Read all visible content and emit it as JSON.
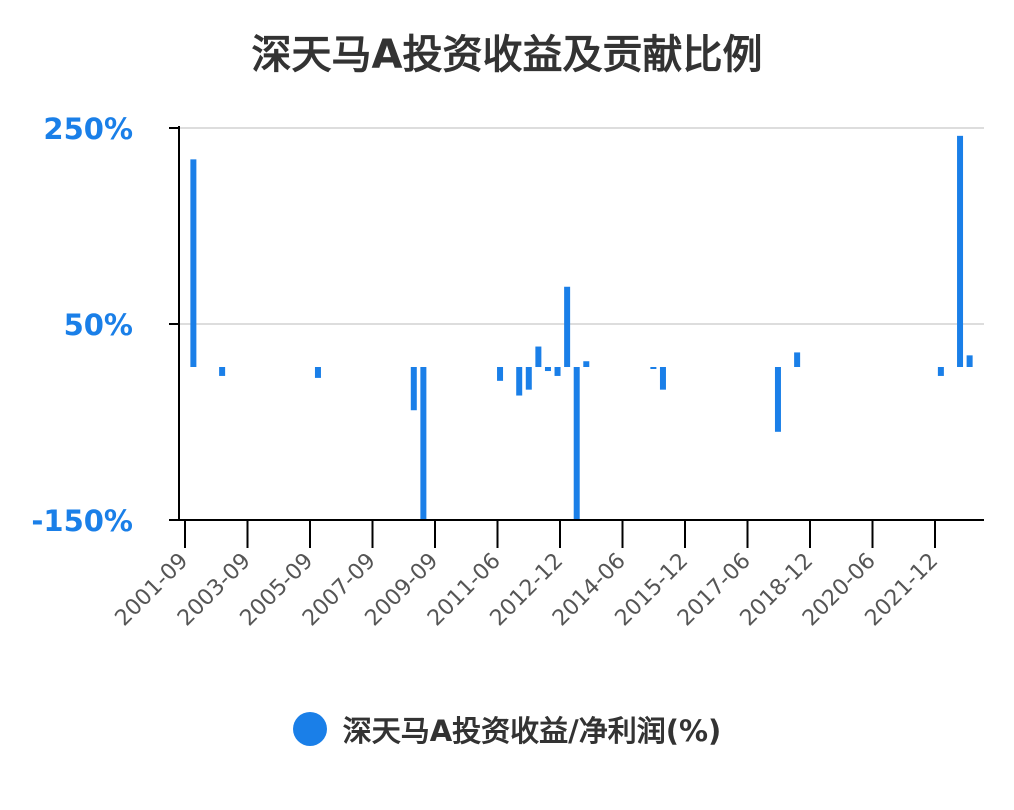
{
  "chart_data": {
    "type": "bar",
    "title": "深天马A投资收益及贡献比例",
    "color": "#1a7fe8",
    "ylim": [
      -150,
      250
    ],
    "yticks": [
      250,
      50,
      -150
    ],
    "ytick_labels": [
      "250%",
      "50%",
      "-150%"
    ],
    "grid": true,
    "legend_position": "bottom",
    "xtick_labels": [
      "2001-09",
      "2003-09",
      "2005-09",
      "2007-09",
      "2009-09",
      "2011-06",
      "2012-12",
      "2014-06",
      "2015-12",
      "2017-06",
      "2018-12",
      "2020-06",
      "2021-12"
    ],
    "series": [
      {
        "name": "深天马A投资收益/净利润(%)",
        "points": [
          {
            "slot": 1,
            "value": 218
          },
          {
            "slot": 4,
            "value": -3
          },
          {
            "slot": 14,
            "value": -5
          },
          {
            "slot": 24,
            "value": -38
          },
          {
            "slot": 25,
            "value": -150
          },
          {
            "slot": 33,
            "value": -8
          },
          {
            "slot": 35,
            "value": -23
          },
          {
            "slot": 36,
            "value": -17
          },
          {
            "slot": 37,
            "value": 27
          },
          {
            "slot": 38,
            "value": 2
          },
          {
            "slot": 39,
            "value": -3
          },
          {
            "slot": 40,
            "value": 88
          },
          {
            "slot": 41,
            "value": -150
          },
          {
            "slot": 42,
            "value": 12
          },
          {
            "slot": 49,
            "value": 6
          },
          {
            "slot": 50,
            "value": -17
          },
          {
            "slot": 62,
            "value": -60
          },
          {
            "slot": 64,
            "value": 21
          },
          {
            "slot": 79,
            "value": -3
          },
          {
            "slot": 81,
            "value": 242
          },
          {
            "slot": 82,
            "value": 18
          }
        ]
      }
    ]
  }
}
